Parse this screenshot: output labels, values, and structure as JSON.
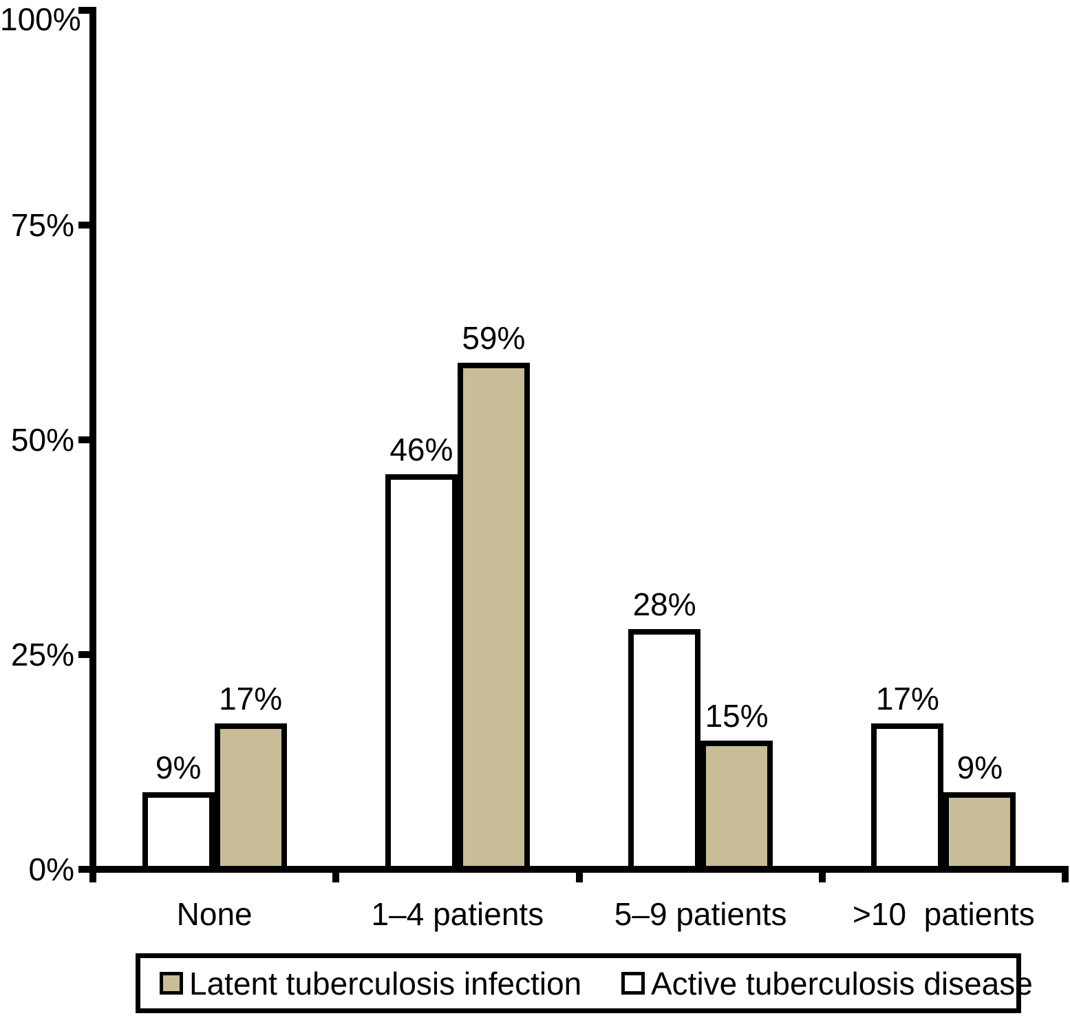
{
  "chart_data": {
    "type": "bar",
    "title": "",
    "xlabel": "",
    "ylabel": "",
    "categories": [
      "None",
      "1–4 patients",
      "5–9 patients",
      ">10  patients"
    ],
    "series": [
      {
        "name": "Active tuberculosis disease",
        "fill": "#ffffff",
        "values": [
          9,
          46,
          28,
          17
        ]
      },
      {
        "name": "Latent tuberculosis infection",
        "fill": "#c8bd96",
        "values": [
          17,
          59,
          15,
          9
        ]
      }
    ],
    "value_suffix": "%",
    "data_labels": {
      "Active tuberculosis disease": [
        "9%",
        "46%",
        "28%",
        "17%"
      ],
      "Latent tuberculosis infection": [
        "17%",
        "59%",
        "15%",
        "9%"
      ]
    },
    "ylim": [
      0,
      100
    ],
    "yticks": [
      100,
      75,
      50,
      25,
      0
    ],
    "ytick_labels": [
      "100%",
      "75%",
      "50%",
      "25%",
      "0%"
    ],
    "grid": false,
    "legend_position": "bottom",
    "legend": [
      {
        "label": "Latent tuberculosis infection",
        "fill": "#c8bd96"
      },
      {
        "label": "Active tuberculosis disease",
        "fill": "#ffffff"
      }
    ]
  },
  "colors": {
    "bar_outline": "#000000",
    "axis": "#000000",
    "text": "#000000",
    "background": "#ffffff",
    "latent_fill": "#c8bd96",
    "active_fill": "#ffffff"
  }
}
